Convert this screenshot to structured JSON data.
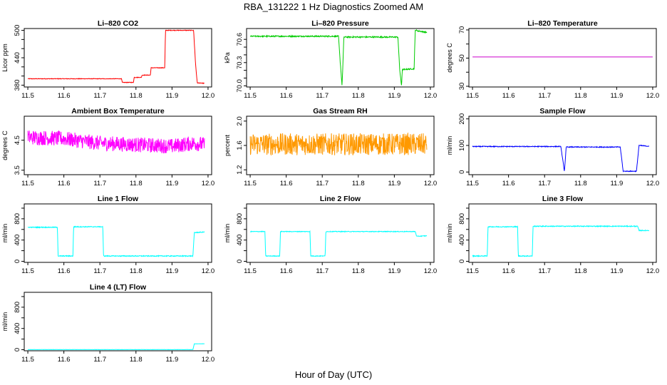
{
  "page": {
    "title": "RBA_131222  1 Hz Diagnostics Zoomed AM",
    "xlabel": "Hour of Day (UTC)"
  },
  "chart_data": [
    {
      "type": "line",
      "title": "Li-820 CO2",
      "ylabel": "Licor ppm",
      "color": "#ff0000",
      "xlim": [
        11.49,
        12.01
      ],
      "ylim": [
        376,
        504
      ],
      "yticks": [
        380,
        400,
        420,
        440,
        460,
        480,
        500
      ],
      "ytick_labels": [
        "380",
        "",
        "",
        "440",
        "",
        "",
        "500"
      ],
      "xticks": [
        11.5,
        11.6,
        11.7,
        11.8,
        11.9,
        12.0
      ],
      "xtick_labels": [
        "11.5",
        "11.6",
        "11.7",
        "11.8",
        "11.9",
        "12.0"
      ],
      "noise": 0.6,
      "x": [
        11.5,
        11.76,
        11.762,
        11.793,
        11.795,
        11.815,
        11.817,
        11.84,
        11.842,
        11.88,
        11.882,
        11.96,
        11.965,
        11.97,
        11.99
      ],
      "y": [
        394,
        394,
        386,
        386,
        397,
        397,
        402,
        402,
        418,
        418,
        500,
        500,
        430,
        385,
        384
      ]
    },
    {
      "type": "line",
      "title": "Li-820 Pressure",
      "ylabel": "kPa",
      "color": "#00cc00",
      "xlim": [
        11.49,
        12.01
      ],
      "ylim": [
        69.985,
        70.74
      ],
      "yticks": [
        70.0,
        70.1,
        70.2,
        70.3,
        70.4,
        70.5,
        70.6
      ],
      "ytick_labels": [
        "70.0",
        "",
        "",
        "70.3",
        "",
        "",
        "70.6"
      ],
      "xticks": [
        11.5,
        11.6,
        11.7,
        11.8,
        11.9,
        12.0
      ],
      "xtick_labels": [
        "11.5",
        "11.6",
        "11.7",
        "11.8",
        "11.9",
        "12.0"
      ],
      "noise": 0.008,
      "x": [
        11.5,
        11.745,
        11.75,
        11.755,
        11.76,
        11.91,
        11.915,
        11.92,
        11.922,
        11.955,
        11.958,
        11.965,
        11.99
      ],
      "y": [
        70.64,
        70.64,
        70.3,
        70.0,
        70.63,
        70.63,
        70.2,
        70.0,
        70.21,
        70.22,
        70.72,
        70.71,
        70.69
      ]
    },
    {
      "type": "line",
      "title": "Li-820 Temperature",
      "ylabel": "degrees C",
      "color": "#cc00cc",
      "xlim": [
        11.49,
        12.01
      ],
      "ylim": [
        29.5,
        71
      ],
      "yticks": [
        30,
        40,
        50,
        60,
        70
      ],
      "ytick_labels": [
        "30",
        "",
        "50",
        "",
        "70"
      ],
      "xticks": [
        11.5,
        11.6,
        11.7,
        11.8,
        11.9,
        12.0
      ],
      "xtick_labels": [
        "11.5",
        "11.6",
        "11.7",
        "11.8",
        "11.9",
        "12.0"
      ],
      "noise": 0,
      "x": [
        11.5,
        12.0
      ],
      "y": [
        50.8,
        50.8
      ]
    },
    {
      "type": "line",
      "title": "Ambient Box Temperature",
      "ylabel": "degrees C",
      "color": "#ff00ff",
      "xlim": [
        11.49,
        12.01
      ],
      "ylim": [
        3.35,
        5.3
      ],
      "yticks": [
        3.5,
        4.5
      ],
      "ytick_labels": [
        "3.5",
        "4.5"
      ],
      "xticks": [
        11.5,
        11.6,
        11.7,
        11.8,
        11.9,
        12.0
      ],
      "xtick_labels": [
        "11.5",
        "11.6",
        "11.7",
        "11.8",
        "11.9",
        "12.0"
      ],
      "noise": 0.25,
      "x": [
        11.5,
        11.6,
        11.7,
        11.8,
        11.9,
        11.96,
        11.99
      ],
      "y": [
        4.6,
        4.55,
        4.4,
        4.35,
        4.3,
        4.4,
        4.35
      ]
    },
    {
      "type": "line",
      "title": "Gas Stream RH",
      "ylabel": "percent",
      "color": "#ff9900",
      "xlim": [
        11.49,
        12.01
      ],
      "ylim": [
        1.12,
        2.08
      ],
      "yticks": [
        1.2,
        1.6,
        2.0
      ],
      "ytick_labels": [
        "1.2",
        "1.6",
        "2.0"
      ],
      "xticks": [
        11.5,
        11.6,
        11.7,
        11.8,
        11.9,
        12.0
      ],
      "xtick_labels": [
        "11.5",
        "11.6",
        "11.7",
        "11.8",
        "11.9",
        "12.0"
      ],
      "noise": 0.18,
      "x": [
        11.5,
        11.99
      ],
      "y": [
        1.62,
        1.62
      ]
    },
    {
      "type": "line",
      "title": "Sample Flow",
      "ylabel": "ml/min",
      "color": "#0000ff",
      "xlim": [
        11.49,
        12.01
      ],
      "ylim": [
        -10,
        210
      ],
      "yticks": [
        0,
        100,
        200
      ],
      "ytick_labels": [
        "0",
        "100",
        "200"
      ],
      "xticks": [
        11.5,
        11.6,
        11.7,
        11.8,
        11.9,
        12.0
      ],
      "xtick_labels": [
        "11.5",
        "11.6",
        "11.7",
        "11.8",
        "11.9",
        "12.0"
      ],
      "noise": 1.5,
      "x": [
        11.5,
        11.745,
        11.75,
        11.755,
        11.76,
        11.91,
        11.918,
        11.955,
        11.962,
        11.99
      ],
      "y": [
        96,
        96,
        50,
        2,
        94,
        94,
        3,
        3,
        100,
        97
      ]
    },
    {
      "type": "line",
      "title": "Line 1 Flow",
      "ylabel": "ml/min",
      "color": "#00ffff",
      "xlim": [
        11.49,
        12.01
      ],
      "ylim": [
        -20,
        1080
      ],
      "yticks": [
        0,
        200,
        400,
        600,
        800,
        1000
      ],
      "ytick_labels": [
        "0",
        "400",
        "800"
      ],
      "ytick_label_values": [
        0,
        400,
        800
      ],
      "xticks": [
        11.5,
        11.6,
        11.7,
        11.8,
        11.9,
        12.0
      ],
      "xtick_labels": [
        "11.5",
        "11.6",
        "11.7",
        "11.8",
        "11.9",
        "12.0"
      ],
      "noise": 8,
      "x": [
        11.5,
        11.582,
        11.584,
        11.625,
        11.627,
        11.708,
        11.71,
        11.958,
        11.962,
        11.99
      ],
      "y": [
        640,
        640,
        100,
        100,
        650,
        650,
        100,
        100,
        540,
        550
      ]
    },
    {
      "type": "line",
      "title": "Line 2 Flow",
      "ylabel": "ml/min",
      "color": "#00ffff",
      "xlim": [
        11.49,
        12.01
      ],
      "ylim": [
        -20,
        1080
      ],
      "yticks": [
        0,
        200,
        400,
        600,
        800,
        1000
      ],
      "ytick_labels": [
        "0",
        "400",
        "800"
      ],
      "ytick_label_values": [
        0,
        400,
        800
      ],
      "xticks": [
        11.5,
        11.6,
        11.7,
        11.8,
        11.9,
        12.0
      ],
      "xtick_labels": [
        "11.5",
        "11.6",
        "11.7",
        "11.8",
        "11.9",
        "12.0"
      ],
      "noise": 6,
      "x": [
        11.5,
        11.541,
        11.543,
        11.582,
        11.584,
        11.666,
        11.668,
        11.708,
        11.71,
        11.958,
        11.962,
        11.99
      ],
      "y": [
        560,
        560,
        100,
        100,
        560,
        560,
        100,
        100,
        560,
        560,
        470,
        480
      ]
    },
    {
      "type": "line",
      "title": "Line 3 Flow",
      "ylabel": "ml/min",
      "color": "#00ffff",
      "xlim": [
        11.49,
        12.01
      ],
      "ylim": [
        -20,
        1080
      ],
      "yticks": [
        0,
        200,
        400,
        600,
        800,
        1000
      ],
      "ytick_labels": [
        "0",
        "400",
        "800"
      ],
      "ytick_label_values": [
        0,
        400,
        800
      ],
      "xticks": [
        11.5,
        11.6,
        11.7,
        11.8,
        11.9,
        12.0
      ],
      "xtick_labels": [
        "11.5",
        "11.6",
        "11.7",
        "11.8",
        "11.9",
        "12.0"
      ],
      "noise": 8,
      "x": [
        11.5,
        11.541,
        11.543,
        11.625,
        11.627,
        11.666,
        11.668,
        11.958,
        11.962,
        11.99
      ],
      "y": [
        100,
        100,
        650,
        650,
        100,
        100,
        660,
        660,
        580,
        580
      ]
    },
    {
      "type": "line",
      "title": "Line 4 (LT) Flow",
      "ylabel": "ml/min",
      "color": "#00ffff",
      "xlim": [
        11.49,
        12.01
      ],
      "ylim": [
        -20,
        1080
      ],
      "yticks": [
        0,
        200,
        400,
        600,
        800,
        1000
      ],
      "ytick_labels": [
        "0",
        "400",
        "800"
      ],
      "ytick_label_values": [
        0,
        400,
        800
      ],
      "xticks": [
        11.5,
        11.6,
        11.7,
        11.8,
        11.9,
        12.0
      ],
      "xtick_labels": [
        "11.5",
        "11.6",
        "11.7",
        "11.8",
        "11.9",
        "12.0"
      ],
      "noise": 2,
      "x": [
        11.5,
        11.958,
        11.962,
        11.99
      ],
      "y": [
        2,
        2,
        110,
        112
      ]
    }
  ]
}
